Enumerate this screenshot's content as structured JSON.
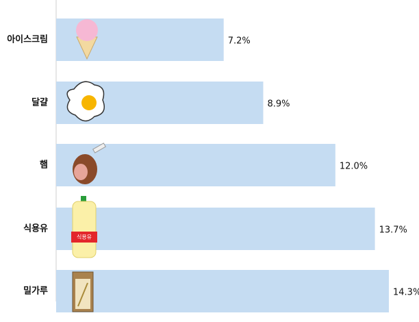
{
  "chart_data": {
    "type": "barh",
    "categories": [
      "아이스크림",
      "달걀",
      "햄",
      "식용유",
      "밀가루"
    ],
    "values": [
      7.2,
      8.9,
      12.0,
      13.7,
      14.3
    ],
    "value_labels": [
      "7.2%",
      "8.9%",
      "12.0%",
      "13.7%",
      "14.3%"
    ],
    "color": "#c5dcf2"
  }
}
